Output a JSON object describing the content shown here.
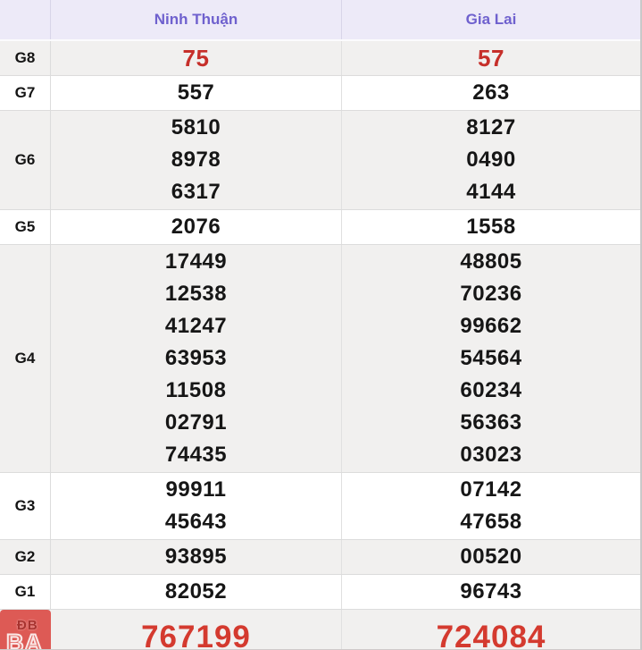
{
  "table": {
    "columns": [
      {
        "label": ""
      },
      {
        "label": "Ninh Thuận"
      },
      {
        "label": "Gia Lai"
      }
    ],
    "rows": [
      {
        "label": "G8",
        "style": "red",
        "cells": [
          [
            "75"
          ],
          [
            "57"
          ]
        ]
      },
      {
        "label": "G7",
        "style": "normal",
        "cells": [
          [
            "557"
          ],
          [
            "263"
          ]
        ]
      },
      {
        "label": "G6",
        "style": "normal",
        "cells": [
          [
            "5810",
            "8978",
            "6317"
          ],
          [
            "8127",
            "0490",
            "4144"
          ]
        ]
      },
      {
        "label": "G5",
        "style": "normal",
        "cells": [
          [
            "2076"
          ],
          [
            "1558"
          ]
        ]
      },
      {
        "label": "G4",
        "style": "normal",
        "cells": [
          [
            "17449",
            "12538",
            "41247",
            "63953",
            "11508",
            "02791",
            "74435"
          ],
          [
            "48805",
            "70236",
            "99662",
            "54564",
            "60234",
            "56363",
            "03023"
          ]
        ]
      },
      {
        "label": "G3",
        "style": "normal",
        "cells": [
          [
            "99911",
            "45643"
          ],
          [
            "07142",
            "47658"
          ]
        ]
      },
      {
        "label": "G2",
        "style": "normal",
        "cells": [
          [
            "93895"
          ],
          [
            "00520"
          ]
        ]
      },
      {
        "label": "G1",
        "style": "normal",
        "cells": [
          [
            "82052"
          ],
          [
            "96743"
          ]
        ]
      },
      {
        "label": "ĐB",
        "style": "db",
        "cells": [
          [
            "767199"
          ],
          [
            "724084"
          ]
        ]
      }
    ],
    "db_badge": {
      "label": "ĐB",
      "watermark": "BA"
    }
  },
  "colors": {
    "header_bg": "#edeaf8",
    "header_text": "#6f61ce",
    "stripe_bg": "#f1f0ef",
    "row_bg": "#ffffff",
    "value_text": "#161616",
    "g8_red": "#c62f2a",
    "db_red": "#d43a2f",
    "db_badge_bg": "#dd5a55",
    "border": "#dcdcdc"
  }
}
